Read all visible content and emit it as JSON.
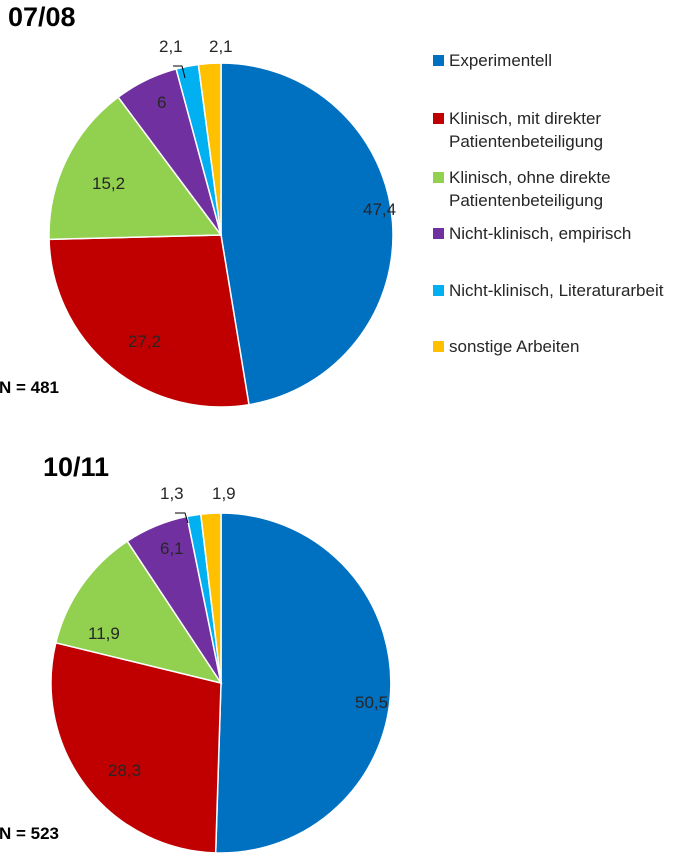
{
  "chart_data": [
    {
      "type": "pie",
      "title": "07/08",
      "n_label": "N = 481",
      "categories": [
        "Experimentell",
        "Klinisch, mit direkter Patientenbeteiligung",
        "Klinisch, ohne direkte Patientenbeteiligung",
        "Nicht-klinisch, empirisch",
        "Nicht-klinisch, Literaturarbeit",
        "sonstige Arbeiten"
      ],
      "values": [
        47.4,
        27.2,
        15.2,
        6,
        2.1,
        2.1
      ],
      "value_labels": [
        "47,4",
        "27,2",
        "15,2",
        "6",
        "2,1",
        "2,1"
      ],
      "start_angle": "12 o'clock",
      "direction": "clockwise"
    },
    {
      "type": "pie",
      "title": "10/11",
      "n_label": "N = 523",
      "categories": [
        "Experimentell",
        "Klinisch, mit direkter Patientenbeteiligung",
        "Klinisch, ohne direkte Patientenbeteiligung",
        "Nicht-klinisch, empirisch",
        "Nicht-klinisch, Literaturarbeit",
        "sonstige Arbeiten"
      ],
      "values": [
        50.5,
        28.3,
        11.9,
        6.1,
        1.3,
        1.9
      ],
      "value_labels": [
        "50,5",
        "28,3",
        "11,9",
        "6,1",
        "1,3",
        "1,9"
      ],
      "start_angle": "12 o'clock",
      "direction": "clockwise"
    }
  ],
  "legend": {
    "placement": "top-right",
    "items": [
      {
        "label_lines": [
          "Experimentell"
        ],
        "color": "#0070C0"
      },
      {
        "label_lines": [
          "Klinisch, mit direkter",
          "Patientenbeteiligung"
        ],
        "color": "#C00000"
      },
      {
        "label_lines": [
          "Klinisch, ohne direkte",
          "Patientenbeteiligung"
        ],
        "color": "#92D050"
      },
      {
        "label_lines": [
          "Nicht-klinisch, empirisch"
        ],
        "color": "#7030A0"
      },
      {
        "label_lines": [
          "Nicht-klinisch, Literaturarbeit"
        ],
        "color": "#00B0F0"
      },
      {
        "label_lines": [
          "sonstige Arbeiten"
        ],
        "color": "#FFC000"
      }
    ]
  }
}
